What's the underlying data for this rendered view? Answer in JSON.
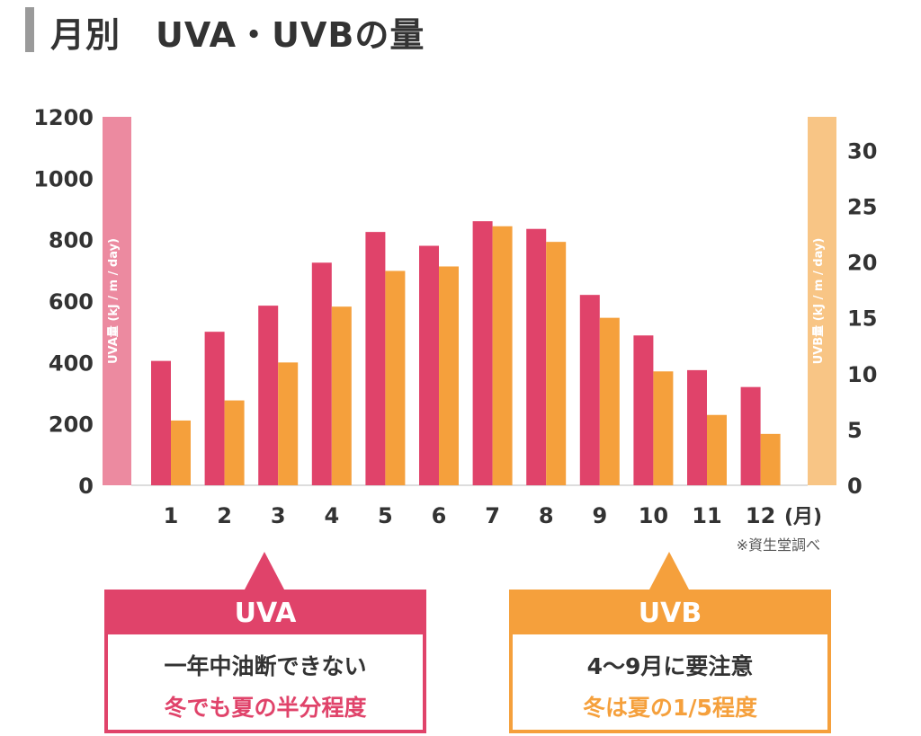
{
  "title": "月別　UVA・UVBの量",
  "chart_data": {
    "type": "bar",
    "title": "月別　UVA・UVBの量",
    "categories": [
      "1",
      "2",
      "3",
      "4",
      "5",
      "6",
      "7",
      "8",
      "9",
      "10",
      "11",
      "12"
    ],
    "x_unit_label": "(月)",
    "series": [
      {
        "name": "UVA",
        "axis": "left",
        "color": "#e0436a",
        "values": [
          405,
          500,
          585,
          725,
          825,
          780,
          860,
          835,
          620,
          488,
          375,
          320
        ]
      },
      {
        "name": "UVB",
        "axis": "right",
        "color": "#f5a03c",
        "values": [
          5.8,
          7.6,
          11.0,
          16.0,
          19.2,
          19.6,
          23.2,
          21.8,
          15.0,
          10.2,
          6.3,
          4.6
        ]
      }
    ],
    "left_axis": {
      "label": "UVA量 (kJ / m / day)",
      "ylim": [
        0,
        1200
      ],
      "ticks": [
        "0",
        "200",
        "400",
        "600",
        "800",
        "1000",
        "1200"
      ]
    },
    "right_axis": {
      "label": "UVB量 (kJ / m / day)",
      "ylim": [
        0,
        33
      ],
      "ticks": [
        "0",
        "5",
        "10",
        "15",
        "20",
        "25",
        "30"
      ]
    },
    "source_note": "※資生堂調べ"
  },
  "callouts": {
    "uva": {
      "heading": "UVA",
      "line1": "一年中油断できない",
      "line2": "冬でも夏の半分程度"
    },
    "uvb": {
      "heading": "UVB",
      "line1": "4〜9月に要注意",
      "line2": "冬は夏の1/5程度"
    }
  }
}
